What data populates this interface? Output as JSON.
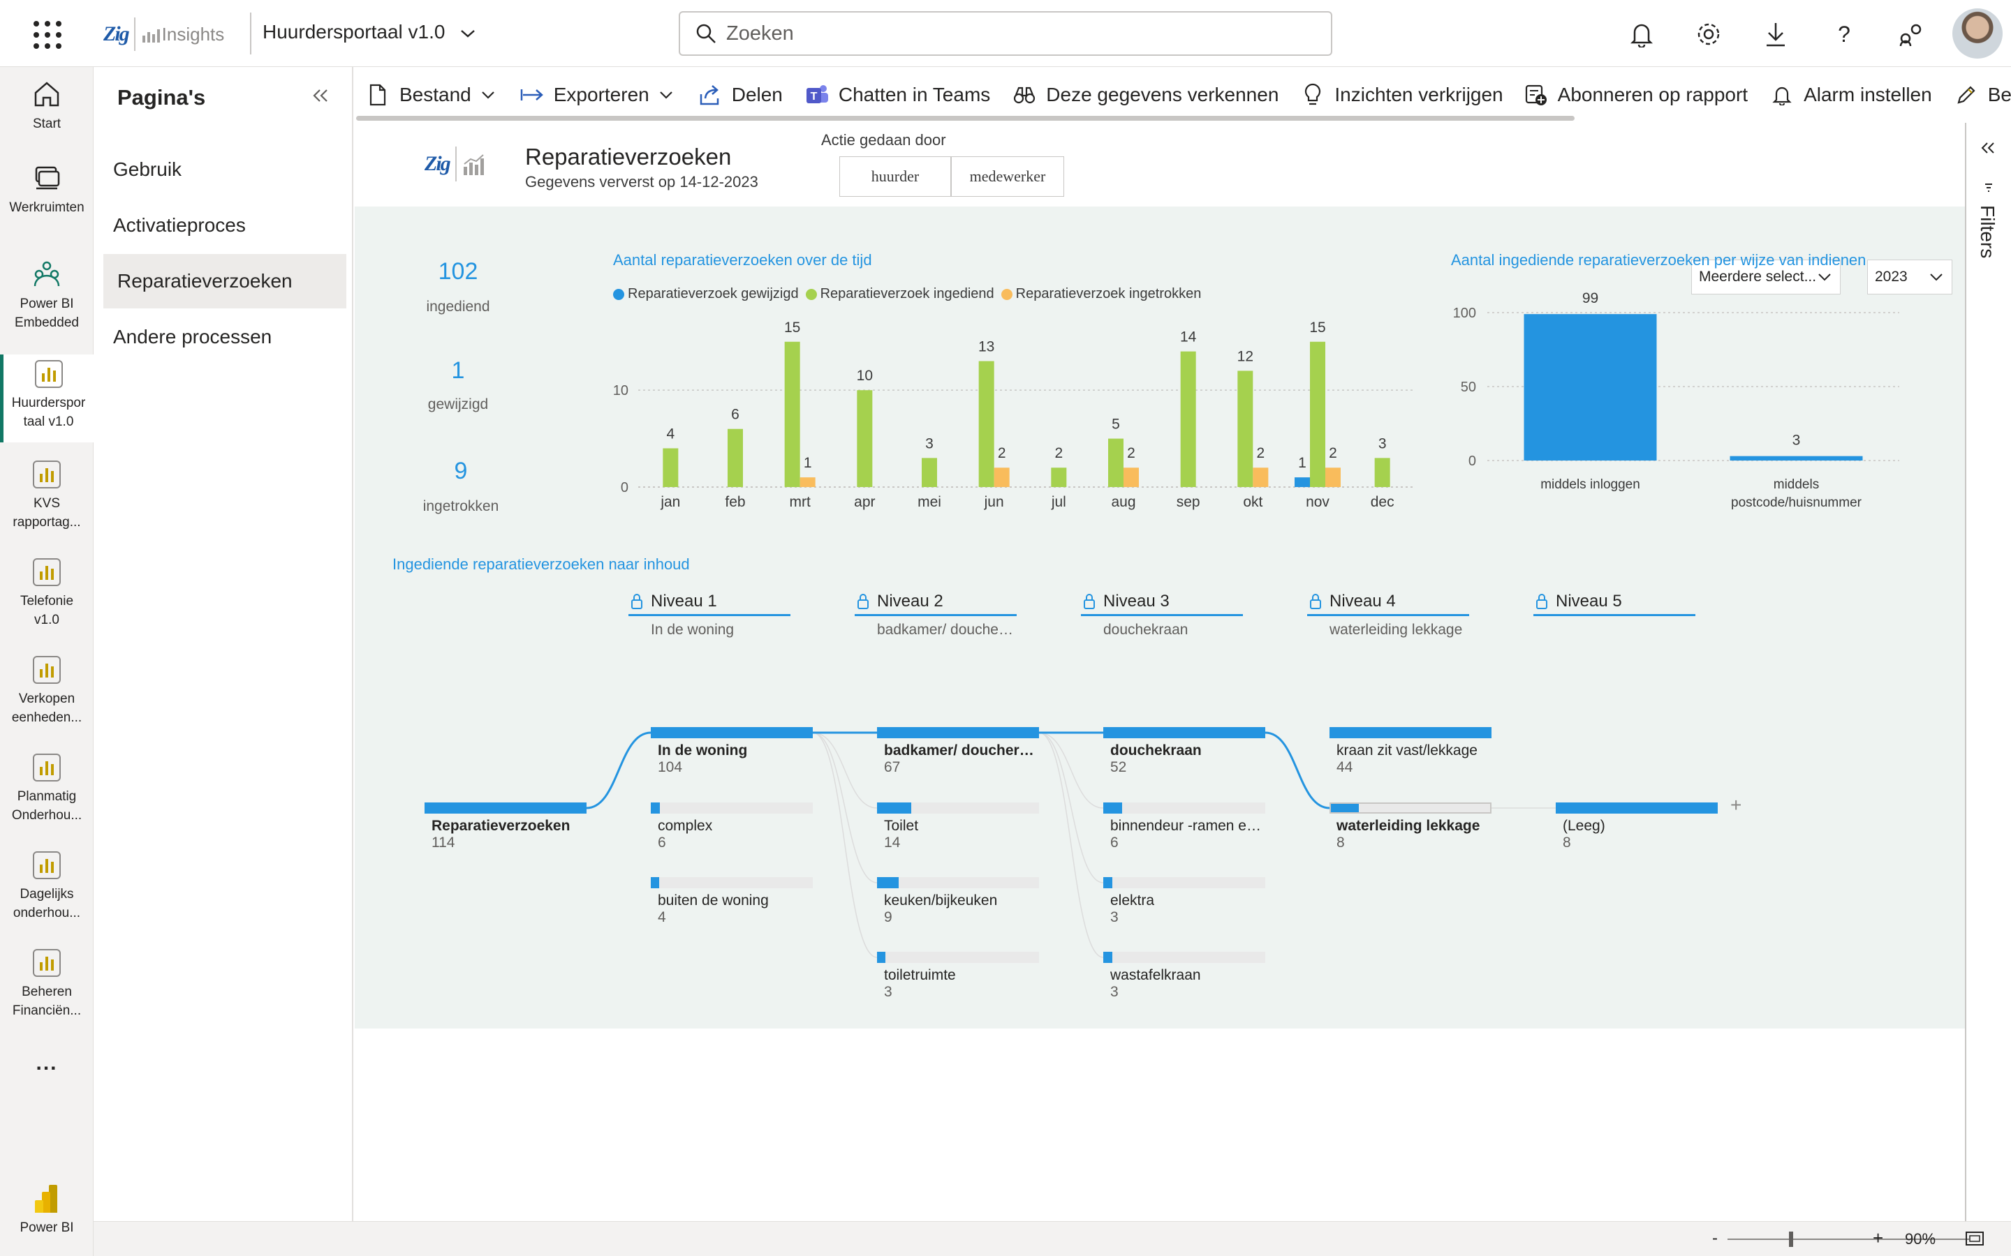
{
  "topbar": {
    "brand_logo": "Zig",
    "brand_text": "Insights",
    "app_name": "Huurdersportaal v1.0",
    "search_placeholder": "Zoeken",
    "icons": [
      "bell-icon",
      "gear-icon",
      "download-icon",
      "help-icon",
      "share-icon"
    ]
  },
  "rail": {
    "items": [
      {
        "label": "Start",
        "icon": "home-icon"
      },
      {
        "label": "Werkruimten",
        "icon": "workspace-icon"
      },
      {
        "label": "Power BI Embedded",
        "icon": "embedded-icon"
      },
      {
        "label": "Huurdersportaal v1.0",
        "icon": "report-icon",
        "active": true
      },
      {
        "label": "KVS rapportag...",
        "icon": "report-icon"
      },
      {
        "label": "Telefonie v1.0",
        "icon": "report-icon"
      },
      {
        "label": "Verkopen eenheden...",
        "icon": "report-icon"
      },
      {
        "label": "Planmatig Onderhou...",
        "icon": "report-icon"
      },
      {
        "label": "Dagelijks onderhou...",
        "icon": "report-icon"
      },
      {
        "label": "Beheren Financiën...",
        "icon": "report-icon"
      }
    ],
    "more": "...",
    "powerbi": "Power BI"
  },
  "pages": {
    "title": "Pagina's",
    "items": [
      "Gebruik",
      "Activatieproces",
      "Reparatieverzoeken",
      "Andere processen"
    ],
    "selected": "Reparatieverzoeken"
  },
  "toolbar": {
    "items": [
      {
        "label": "Bestand",
        "icon": "file-icon",
        "chevron": true
      },
      {
        "label": "Exporteren",
        "icon": "export-icon",
        "chevron": true
      },
      {
        "label": "Delen",
        "icon": "share-icon"
      },
      {
        "label": "Chatten in Teams",
        "icon": "teams-icon"
      },
      {
        "label": "Deze gegevens verkennen",
        "icon": "binoculars-icon"
      },
      {
        "label": "Inzichten verkrijgen",
        "icon": "lightbulb-icon"
      },
      {
        "label": "Abonneren op rapport",
        "icon": "subscribe-icon"
      },
      {
        "label": "Alarm instellen",
        "icon": "bell-icon"
      },
      {
        "label": "Bew",
        "icon": "edit-icon"
      }
    ]
  },
  "report": {
    "title": "Reparatieverzoeken",
    "refreshed": "Gegevens ververst op  14-12-2023",
    "action_label": "Actie gedaan door",
    "action_buttons": [
      "huurder",
      "medewerker"
    ],
    "slicer_multi": "Meerdere select...",
    "slicer_year": "2023",
    "kpis": [
      {
        "value": "102",
        "label": "ingediend"
      },
      {
        "value": "1",
        "label": "gewijzigd"
      },
      {
        "value": "9",
        "label": "ingetrokken"
      }
    ],
    "filters_label": "Filters"
  },
  "chart_data": [
    {
      "type": "bar",
      "title": "Aantal reparatieverzoeken over de tijd",
      "categories": [
        "jan",
        "feb",
        "mrt",
        "apr",
        "mei",
        "jun",
        "jul",
        "aug",
        "sep",
        "okt",
        "nov",
        "dec"
      ],
      "series": [
        {
          "name": "Reparatieverzoek gewijzigd",
          "color": "#2494e0",
          "values": [
            null,
            null,
            null,
            null,
            null,
            null,
            null,
            null,
            null,
            null,
            1,
            null
          ]
        },
        {
          "name": "Reparatieverzoek ingediend",
          "color": "#a5d14e",
          "values": [
            4,
            6,
            15,
            10,
            3,
            13,
            2,
            5,
            14,
            12,
            15,
            3
          ]
        },
        {
          "name": "Reparatieverzoek ingetrokken",
          "color": "#f9bc5c",
          "values": [
            null,
            null,
            1,
            null,
            null,
            2,
            null,
            2,
            null,
            2,
            2,
            null
          ]
        }
      ],
      "yticks": [
        0,
        10
      ],
      "ylim": [
        0,
        17
      ],
      "legend": "top"
    },
    {
      "type": "bar",
      "title": "Aantal ingediende reparatieverzoeken per wijze van indienen",
      "categories": [
        "middels inloggen",
        "middels postcode/huisnummer"
      ],
      "values": [
        99,
        3
      ],
      "yticks": [
        0,
        50,
        100
      ],
      "ylim": [
        0,
        100
      ],
      "color": "#2494e0"
    }
  ],
  "tree": {
    "title": "Ingediende reparatieverzoeken naar inhoud",
    "levels": [
      {
        "name": "Niveau 1",
        "value": "In de woning"
      },
      {
        "name": "Niveau 2",
        "value": "badkamer/ doucherui..."
      },
      {
        "name": "Niveau 3",
        "value": "douchekraan"
      },
      {
        "name": "Niveau 4",
        "value": "waterleiding lekkage"
      },
      {
        "name": "Niveau 5",
        "value": ""
      }
    ],
    "root": {
      "label": "Reparatieverzoeken",
      "value": "114"
    },
    "columns": [
      [
        {
          "label": "In de woning",
          "value": "104",
          "fill": 1.0,
          "bold": true
        },
        {
          "label": "complex",
          "value": "6",
          "fill": 0.058
        },
        {
          "label": "buiten de woning",
          "value": "4",
          "fill": 0.04
        }
      ],
      [
        {
          "label": "badkamer/ doucheru...",
          "value": "67",
          "fill": 1.0,
          "bold": true
        },
        {
          "label": "Toilet",
          "value": "14",
          "fill": 0.21
        },
        {
          "label": "keuken/bijkeuken",
          "value": "9",
          "fill": 0.134
        },
        {
          "label": "toiletruimte",
          "value": "3",
          "fill": 0.045
        }
      ],
      [
        {
          "label": "douchekraan",
          "value": "52",
          "fill": 1.0,
          "bold": true
        },
        {
          "label": "binnendeur -ramen en...",
          "value": "6",
          "fill": 0.115
        },
        {
          "label": "elektra",
          "value": "3",
          "fill": 0.058
        },
        {
          "label": "wastafelkraan",
          "value": "3",
          "fill": 0.058
        }
      ],
      [
        {
          "label": "kraan zit vast/lekkage",
          "value": "44",
          "fill": 1.0
        },
        {
          "label": "waterleiding lekkage",
          "value": "8",
          "fill": 0.18,
          "bold": true
        }
      ],
      [
        {
          "label": "(Leeg)",
          "value": "8",
          "fill": 1.0
        }
      ]
    ]
  },
  "status": {
    "zoom": "90%"
  }
}
